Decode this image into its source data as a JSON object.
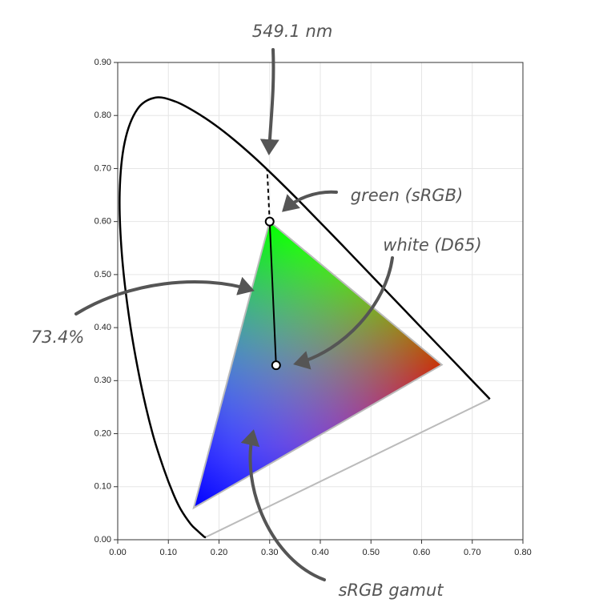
{
  "chart_data": {
    "type": "chromaticity",
    "xlim": [
      0,
      0.8
    ],
    "ylim": [
      0,
      0.9
    ],
    "xticks": [
      {
        "value": 0,
        "label": "0.00"
      },
      {
        "value": 0.1,
        "label": "0.10"
      },
      {
        "value": 0.2,
        "label": "0.20"
      },
      {
        "value": 0.3,
        "label": "0.30"
      },
      {
        "value": 0.4,
        "label": "0.40"
      },
      {
        "value": 0.5,
        "label": "0.50"
      },
      {
        "value": 0.6,
        "label": "0.60"
      },
      {
        "value": 0.7,
        "label": "0.70"
      },
      {
        "value": 0.8,
        "label": "0.80"
      }
    ],
    "yticks": [
      {
        "value": 0,
        "label": "0.00"
      },
      {
        "value": 0.1,
        "label": "0.10"
      },
      {
        "value": 0.2,
        "label": "0.20"
      },
      {
        "value": 0.3,
        "label": "0.30"
      },
      {
        "value": 0.4,
        "label": "0.40"
      },
      {
        "value": 0.5,
        "label": "0.50"
      },
      {
        "value": 0.6,
        "label": "0.60"
      },
      {
        "value": 0.7,
        "label": "0.70"
      },
      {
        "value": 0.8,
        "label": "0.80"
      },
      {
        "value": 0.9,
        "label": "0.90"
      }
    ],
    "grid": true,
    "locus": {
      "x": [
        0.1741,
        0.1714,
        0.1644,
        0.1566,
        0.144,
        0.1241,
        0.1096,
        0.0913,
        0.0687,
        0.0454,
        0.0235,
        0.0082,
        0.0039,
        0.0139,
        0.0389,
        0.0743,
        0.1142,
        0.1547,
        0.1929,
        0.2296,
        0.2658,
        0.3016,
        0.3373,
        0.3731,
        0.4441,
        0.5125,
        0.5752,
        0.627,
        0.6658,
        0.6915,
        0.719,
        0.73,
        0.7347
      ],
      "y": [
        0.005,
        0.0051,
        0.0109,
        0.0177,
        0.0297,
        0.0578,
        0.0868,
        0.1327,
        0.2007,
        0.295,
        0.4127,
        0.5384,
        0.6548,
        0.7502,
        0.812,
        0.8338,
        0.8262,
        0.8059,
        0.7816,
        0.7543,
        0.7243,
        0.6923,
        0.6589,
        0.6245,
        0.5547,
        0.4866,
        0.4242,
        0.3725,
        0.334,
        0.3083,
        0.2809,
        0.27,
        0.2653
      ]
    },
    "gamut": {
      "x": [
        0.64,
        0.3,
        0.15
      ],
      "y": [
        0.33,
        0.6,
        0.06
      ],
      "colors": [
        "#ff0000",
        "#00ff00",
        "#0000ff"
      ]
    },
    "white_point": {
      "x": 0.3127,
      "y": 0.329
    },
    "dominant_point": {
      "x": 0.295,
      "y": 0.699
    },
    "annotations": [
      "549.1 nm",
      "green (sRGB)",
      "white (D65)",
      "73.4%",
      "sRGB gamut"
    ]
  }
}
